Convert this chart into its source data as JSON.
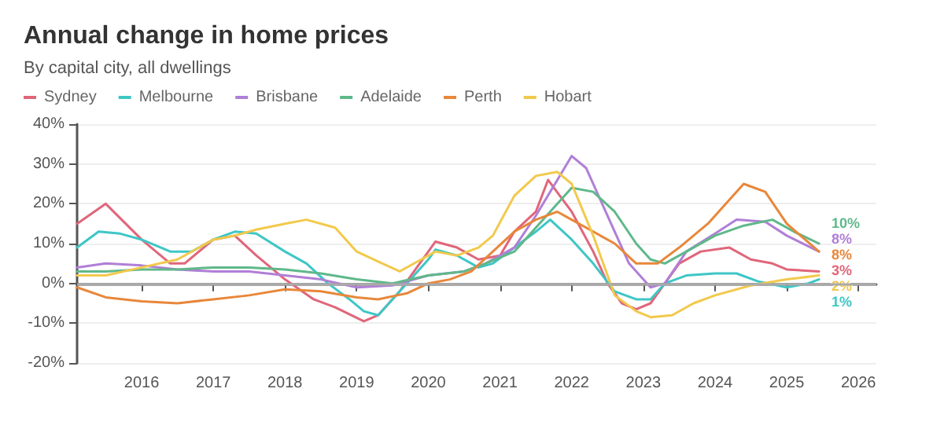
{
  "chart_data": {
    "type": "line",
    "title": "Annual change in home prices",
    "subtitle": "By capital city, all dwellings",
    "xlim": [
      2015.1,
      2026.25
    ],
    "xticks": [
      2016,
      2017,
      2018,
      2019,
      2020,
      2021,
      2022,
      2023,
      2024,
      2025,
      2026
    ],
    "ylim": [
      -20,
      40
    ],
    "yticks": [
      {
        "value": -20,
        "label": "-20%"
      },
      {
        "value": -10,
        "label": "-10%"
      },
      {
        "value": 0,
        "label": "0%"
      },
      {
        "value": 10,
        "label": "10%"
      },
      {
        "value": 20,
        "label": "20%"
      },
      {
        "value": 30,
        "label": "30%"
      },
      {
        "value": 40,
        "label": "40%"
      }
    ],
    "grid": "y",
    "legend": "top left",
    "marker": "none",
    "line_style": "solid",
    "ref_lines": [
      {
        "axis": "y",
        "value": 0,
        "color": "#aaaaaa"
      }
    ],
    "series": [
      {
        "name": "Sydney",
        "color": "#e0667a",
        "x": [
          2015.1,
          2015.5,
          2016,
          2016.4,
          2016.6,
          2017,
          2017.3,
          2017.6,
          2018,
          2018.4,
          2018.7,
          2019.1,
          2019.3,
          2019.6,
          2020,
          2020.1,
          2020.4,
          2020.7,
          2021,
          2021.2,
          2021.5,
          2021.67,
          2022,
          2022.3,
          2022.5,
          2022.7,
          2022.9,
          2023.1,
          2023.3,
          2023.5,
          2023.8,
          2024.2,
          2024.5,
          2024.8,
          2025,
          2025.45
        ],
        "values": [
          15,
          20,
          11,
          5,
          5,
          11,
          12,
          7,
          1,
          -4,
          -6,
          -9.5,
          -8,
          -2,
          8,
          10.5,
          9,
          6,
          7,
          13,
          18,
          26,
          18,
          8,
          0,
          -5,
          -6.5,
          -5,
          0,
          5,
          8,
          9,
          6,
          5,
          3.5,
          3
        ],
        "value_labels": [
          null,
          null,
          null,
          null,
          null,
          null,
          null,
          null,
          null,
          null,
          null,
          null,
          null,
          null,
          null,
          null,
          null,
          null,
          null,
          null,
          null,
          null,
          null,
          null,
          null,
          null,
          null,
          null,
          null,
          null,
          null,
          null,
          null,
          null,
          null,
          "3%"
        ]
      },
      {
        "name": "Melbourne",
        "color": "#3ec6c6",
        "x": [
          2015.1,
          2015.4,
          2015.7,
          2016,
          2016.4,
          2016.7,
          2017,
          2017.3,
          2017.6,
          2018,
          2018.3,
          2018.6,
          2018.9,
          2019.1,
          2019.3,
          2019.5,
          2019.7,
          2020,
          2020.1,
          2020.4,
          2020.7,
          2020.9,
          2021.2,
          2021.5,
          2021.7,
          2022,
          2022.3,
          2022.6,
          2022.9,
          2023.1,
          2023.3,
          2023.6,
          2024,
          2024.3,
          2024.6,
          2025,
          2025.3,
          2025.45
        ],
        "values": [
          9,
          13,
          12.5,
          11,
          8,
          8,
          11,
          13,
          12.5,
          8,
          5,
          0,
          -4,
          -7,
          -8,
          -4,
          0,
          6,
          8.5,
          7,
          4,
          5,
          9,
          13,
          16,
          11,
          5,
          -2,
          -4,
          -4,
          0,
          2,
          2.5,
          2.5,
          0.5,
          -1,
          0,
          1
        ],
        "value_labels": [
          null,
          null,
          null,
          null,
          null,
          null,
          null,
          null,
          null,
          null,
          null,
          null,
          null,
          null,
          null,
          null,
          null,
          null,
          null,
          null,
          null,
          null,
          null,
          null,
          null,
          null,
          null,
          null,
          null,
          null,
          null,
          null,
          null,
          null,
          null,
          null,
          null,
          "1%"
        ]
      },
      {
        "name": "Brisbane",
        "color": "#b07fd6",
        "x": [
          2015.1,
          2015.5,
          2016,
          2016.5,
          2017,
          2017.5,
          2018,
          2018.5,
          2019,
          2019.5,
          2020,
          2020.5,
          2020.8,
          2021.2,
          2021.5,
          2021.8,
          2022,
          2022.2,
          2022.5,
          2022.8,
          2023.1,
          2023.3,
          2023.6,
          2024,
          2024.3,
          2024.7,
          2025,
          2025.45
        ],
        "values": [
          4,
          5,
          4.5,
          3.5,
          3,
          3,
          2,
          1,
          -1,
          -0.5,
          2,
          3,
          5,
          9,
          17,
          26,
          32,
          29,
          17,
          5,
          -1,
          0,
          8,
          12.5,
          16,
          15.5,
          12,
          8
        ],
        "value_labels": [
          null,
          null,
          null,
          null,
          null,
          null,
          null,
          null,
          null,
          null,
          null,
          null,
          null,
          null,
          null,
          null,
          null,
          null,
          null,
          null,
          null,
          null,
          null,
          null,
          null,
          null,
          null,
          "8%"
        ]
      },
      {
        "name": "Adelaide",
        "color": "#5fb88a",
        "x": [
          2015.1,
          2015.5,
          2016,
          2016.5,
          2017,
          2017.5,
          2018,
          2018.5,
          2019,
          2019.5,
          2020,
          2020.5,
          2020.8,
          2021.2,
          2021.5,
          2021.8,
          2022,
          2022.3,
          2022.6,
          2022.9,
          2023.1,
          2023.3,
          2023.6,
          2024,
          2024.4,
          2024.8,
          2025.1,
          2025.45
        ],
        "values": [
          3,
          3,
          3.5,
          3.5,
          4,
          4,
          3.5,
          2.5,
          1,
          0,
          2,
          3,
          5,
          8,
          14,
          20,
          24,
          23,
          18,
          10,
          6,
          5,
          8,
          12,
          14.5,
          16,
          13,
          10
        ],
        "value_labels": [
          null,
          null,
          null,
          null,
          null,
          null,
          null,
          null,
          null,
          null,
          null,
          null,
          null,
          null,
          null,
          null,
          null,
          null,
          null,
          null,
          null,
          null,
          null,
          null,
          null,
          null,
          null,
          "10%"
        ]
      },
      {
        "name": "Perth",
        "color": "#e8873a",
        "x": [
          2015.1,
          2015.5,
          2016,
          2016.5,
          2017,
          2017.5,
          2018,
          2018.5,
          2019,
          2019.3,
          2019.7,
          2020,
          2020.3,
          2020.6,
          2020.9,
          2021.2,
          2021.5,
          2021.8,
          2022,
          2022.3,
          2022.6,
          2022.9,
          2023.2,
          2023.5,
          2023.9,
          2024.2,
          2024.4,
          2024.7,
          2025,
          2025.45
        ],
        "values": [
          -1,
          -3.5,
          -4.5,
          -5,
          -4,
          -3,
          -1.5,
          -2,
          -3.5,
          -4,
          -2.5,
          0,
          1,
          3,
          8,
          13,
          16,
          18,
          16,
          13,
          10,
          5,
          5,
          9,
          15,
          21,
          25,
          23,
          15,
          8
        ],
        "value_labels": [
          null,
          null,
          null,
          null,
          null,
          null,
          null,
          null,
          null,
          null,
          null,
          null,
          null,
          null,
          null,
          null,
          null,
          null,
          null,
          null,
          null,
          null,
          null,
          null,
          null,
          null,
          null,
          null,
          null,
          "8%"
        ]
      },
      {
        "name": "Hobart",
        "color": "#f2c94c",
        "x": [
          2015.1,
          2015.5,
          2016,
          2016.5,
          2017,
          2017.3,
          2017.6,
          2018,
          2018.3,
          2018.7,
          2019,
          2019.3,
          2019.6,
          2019.9,
          2020.1,
          2020.4,
          2020.7,
          2020.9,
          2021.2,
          2021.5,
          2021.8,
          2022,
          2022.3,
          2022.6,
          2022.9,
          2023.1,
          2023.4,
          2023.7,
          2024,
          2024.5,
          2025,
          2025.45
        ],
        "values": [
          2,
          2,
          4,
          6,
          11,
          12,
          13.5,
          15,
          16,
          14,
          8,
          5.5,
          3,
          6,
          8,
          7,
          9,
          12,
          22,
          27,
          28,
          25,
          12,
          -3,
          -7,
          -8.5,
          -8,
          -5,
          -3,
          -0.5,
          1,
          2
        ],
        "value_labels": [
          null,
          null,
          null,
          null,
          null,
          null,
          null,
          null,
          null,
          null,
          null,
          null,
          null,
          null,
          null,
          null,
          null,
          null,
          null,
          null,
          null,
          null,
          null,
          null,
          null,
          null,
          null,
          null,
          null,
          null,
          null,
          "2%"
        ]
      }
    ]
  }
}
